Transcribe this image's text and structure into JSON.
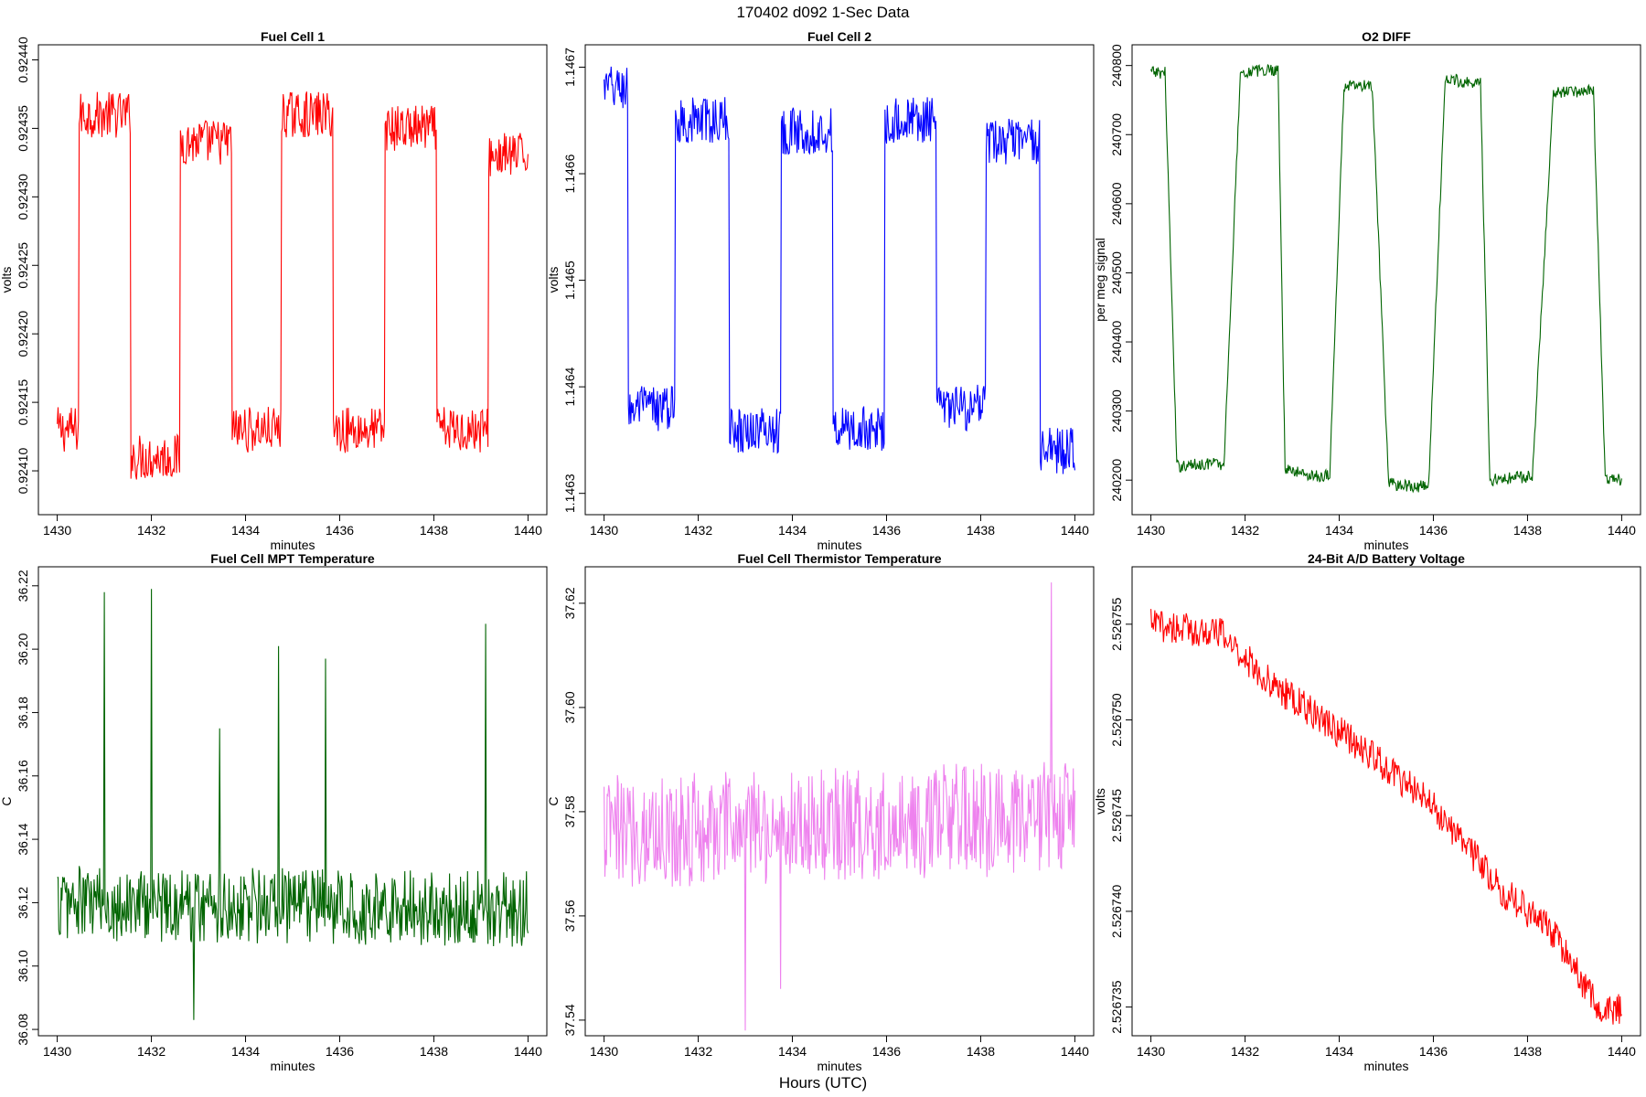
{
  "figure": {
    "title": "170402   d092   1-Sec Data",
    "xlabel": "Hours (UTC)"
  },
  "chart_data": [
    {
      "type": "line",
      "title": "Fuel Cell 1",
      "xlabel": "minutes",
      "ylabel": "volts",
      "color": "#ff0000",
      "xlim": [
        1429.6,
        1440.4
      ],
      "ylim": [
        0.924068,
        0.924411
      ],
      "xticks": [
        1430,
        1432,
        1434,
        1436,
        1438,
        1440
      ],
      "yticks": [
        0.9241,
        0.92415,
        0.9242,
        0.92425,
        0.9243,
        0.92435,
        0.9244
      ],
      "ytick_labels": [
        "0.92410",
        "0.92415",
        "0.92420",
        "0.92425",
        "0.92430",
        "0.92435",
        "0.92440"
      ],
      "segments": [
        [
          1430.0,
          0.92413
        ],
        [
          1430.45,
          0.92413
        ],
        [
          1430.45,
          0.92436
        ],
        [
          1431.55,
          0.92436
        ],
        [
          1431.55,
          0.92411
        ],
        [
          1432.6,
          0.92411
        ],
        [
          1432.6,
          0.92434
        ],
        [
          1433.7,
          0.92434
        ],
        [
          1433.7,
          0.92413
        ],
        [
          1434.75,
          0.92413
        ],
        [
          1434.75,
          0.92436
        ],
        [
          1435.85,
          0.92436
        ],
        [
          1435.85,
          0.92413
        ],
        [
          1436.95,
          0.92413
        ],
        [
          1436.95,
          0.92435
        ],
        [
          1438.05,
          0.92435
        ],
        [
          1438.05,
          0.92413
        ],
        [
          1439.15,
          0.92413
        ],
        [
          1439.15,
          0.92433
        ],
        [
          1440.0,
          0.92433
        ]
      ],
      "noise": 1.7e-05
    },
    {
      "type": "line",
      "title": "Fuel Cell 2",
      "xlabel": "minutes",
      "ylabel": "volts",
      "color": "#0000ff",
      "xlim": [
        1429.6,
        1440.4
      ],
      "ylim": [
        1.14628,
        1.146721
      ],
      "xticks": [
        1430,
        1432,
        1434,
        1436,
        1438,
        1440
      ],
      "yticks": [
        1.1463,
        1.1464,
        1.1465,
        1.1466,
        1.1467
      ],
      "ytick_labels": [
        "1.1463",
        "1.1464",
        "1.1465",
        "1.1466",
        "1.1467"
      ],
      "segments": [
        [
          1430.0,
          1.14668
        ],
        [
          1430.5,
          1.14668
        ],
        [
          1430.5,
          1.14638
        ],
        [
          1431.5,
          1.14638
        ],
        [
          1431.5,
          1.14665
        ],
        [
          1432.65,
          1.14665
        ],
        [
          1432.65,
          1.14636
        ],
        [
          1433.75,
          1.14636
        ],
        [
          1433.75,
          1.14664
        ],
        [
          1434.85,
          1.14664
        ],
        [
          1434.85,
          1.14636
        ],
        [
          1435.95,
          1.14636
        ],
        [
          1435.95,
          1.14665
        ],
        [
          1437.05,
          1.14665
        ],
        [
          1437.05,
          1.14638
        ],
        [
          1438.1,
          1.14638
        ],
        [
          1438.1,
          1.14663
        ],
        [
          1439.25,
          1.14663
        ],
        [
          1439.25,
          1.14634
        ],
        [
          1440.0,
          1.14634
        ]
      ],
      "noise": 2.2e-05
    },
    {
      "type": "line",
      "title": "O2 DIFF",
      "xlabel": "minutes",
      "ylabel": "per meg signal",
      "color": "#006400",
      "xlim": [
        1429.6,
        1440.4
      ],
      "ylim": [
        240150,
        240830
      ],
      "xticks": [
        1430,
        1432,
        1434,
        1436,
        1438,
        1440
      ],
      "yticks": [
        240200,
        240300,
        240400,
        240500,
        240600,
        240700,
        240800
      ],
      "ytick_labels": [
        "240200",
        "240300",
        "240400",
        "240500",
        "240600",
        "240700",
        "240800"
      ],
      "segments": [
        [
          1430.0,
          240790
        ],
        [
          1430.3,
          240790
        ],
        [
          1430.55,
          240220
        ],
        [
          1431.35,
          240225
        ],
        [
          1431.55,
          240220
        ],
        [
          1431.9,
          240790
        ],
        [
          1432.7,
          240795
        ],
        [
          1432.85,
          240215
        ],
        [
          1433.6,
          240205
        ],
        [
          1433.8,
          240210
        ],
        [
          1434.1,
          240770
        ],
        [
          1434.7,
          240770
        ],
        [
          1435.05,
          240195
        ],
        [
          1435.8,
          240190
        ],
        [
          1435.9,
          240195
        ],
        [
          1436.25,
          240780
        ],
        [
          1437.0,
          240775
        ],
        [
          1437.2,
          240200
        ],
        [
          1437.95,
          240205
        ],
        [
          1438.1,
          240205
        ],
        [
          1438.55,
          240760
        ],
        [
          1439.4,
          240765
        ],
        [
          1439.65,
          240200
        ],
        [
          1440.0,
          240200
        ]
      ],
      "noise": 9
    },
    {
      "type": "line",
      "title": "Fuel Cell MPT Temperature",
      "xlabel": "minutes",
      "ylabel": "C",
      "color": "#006400",
      "xlim": [
        1429.6,
        1440.4
      ],
      "ylim": [
        36.078,
        36.226
      ],
      "xticks": [
        1430,
        1432,
        1434,
        1436,
        1438,
        1440
      ],
      "yticks": [
        36.08,
        36.1,
        36.12,
        36.14,
        36.16,
        36.18,
        36.2,
        36.22
      ],
      "ytick_labels": [
        "36.08",
        "36.10",
        "36.12",
        "36.14",
        "36.16",
        "36.18",
        "36.20",
        "36.22"
      ],
      "segments": [
        [
          1430.0,
          36.12
        ],
        [
          1440.0,
          36.118
        ]
      ],
      "noise": 0.012,
      "spikes": [
        [
          1431.0,
          36.218
        ],
        [
          1432.0,
          36.219
        ],
        [
          1434.7,
          36.201
        ],
        [
          1439.1,
          36.208
        ],
        [
          1435.7,
          36.197
        ],
        [
          1433.45,
          36.175
        ],
        [
          1432.9,
          36.083
        ]
      ]
    },
    {
      "type": "line",
      "title": "Fuel Cell Thermistor Temperature",
      "xlabel": "minutes",
      "ylabel": "C",
      "color": "#ee82ee",
      "xlim": [
        1429.6,
        1440.4
      ],
      "ylim": [
        37.537,
        37.627
      ],
      "xticks": [
        1430,
        1432,
        1434,
        1436,
        1438,
        1440
      ],
      "yticks": [
        37.54,
        37.56,
        37.58,
        37.6,
        37.62
      ],
      "ytick_labels": [
        "37.54",
        "37.56",
        "37.58",
        "37.60",
        "37.62"
      ],
      "segments": [
        [
          1430.0,
          37.576
        ],
        [
          1440.0,
          37.579
        ]
      ],
      "noise": 0.011,
      "spikes": [
        [
          1433.0,
          37.538
        ],
        [
          1439.5,
          37.624
        ],
        [
          1433.75,
          37.546
        ]
      ]
    },
    {
      "type": "line",
      "title": "24-Bit A/D Battery Voltage",
      "xlabel": "minutes",
      "ylabel": "volts",
      "color": "#ff0000",
      "xlim": [
        1429.6,
        1440.4
      ],
      "ylim": [
        2.5267335,
        2.526758
      ],
      "xticks": [
        1430,
        1432,
        1434,
        1436,
        1438,
        1440
      ],
      "yticks": [
        2.526735,
        2.52674,
        2.526745,
        2.52675,
        2.526755
      ],
      "ytick_labels": [
        "2.526735",
        "2.526740",
        "2.526745",
        "2.526750",
        "2.526755"
      ],
      "segments": [
        [
          1430.0,
          2.526755
        ],
        [
          1431.5,
          2.5267545
        ],
        [
          1432.5,
          2.526752
        ],
        [
          1434.5,
          2.5267485
        ],
        [
          1436.0,
          2.5267455
        ],
        [
          1437.5,
          2.526741
        ],
        [
          1438.5,
          2.526739
        ],
        [
          1439.6,
          2.5267345
        ],
        [
          1440.0,
          2.526735
        ]
      ],
      "noise": 8.5e-07
    }
  ]
}
